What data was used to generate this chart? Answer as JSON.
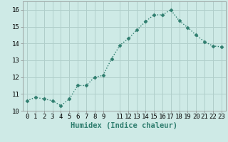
{
  "x": [
    0,
    1,
    2,
    3,
    4,
    5,
    6,
    7,
    8,
    9,
    10,
    11,
    12,
    13,
    14,
    15,
    16,
    17,
    18,
    19,
    20,
    21,
    22,
    23
  ],
  "y": [
    10.6,
    10.8,
    10.7,
    10.6,
    10.3,
    10.7,
    11.5,
    11.5,
    12.0,
    12.1,
    13.1,
    13.9,
    14.3,
    14.8,
    15.3,
    15.7,
    15.7,
    16.0,
    15.35,
    14.95,
    14.5,
    14.1,
    13.85,
    13.8
  ],
  "line_color": "#2e7d6e",
  "marker": "D",
  "marker_size": 2.5,
  "bg_color": "#ceeae6",
  "grid_color": "#b0ceca",
  "xlabel": "Humidex (Indice chaleur)",
  "ylim": [
    10,
    16.5
  ],
  "xlim": [
    -0.5,
    23.5
  ],
  "yticks": [
    10,
    11,
    12,
    13,
    14,
    15,
    16
  ],
  "xticks": [
    0,
    1,
    2,
    3,
    4,
    5,
    6,
    7,
    8,
    9,
    11,
    12,
    13,
    14,
    15,
    16,
    17,
    18,
    19,
    20,
    21,
    22,
    23
  ],
  "xlabel_fontsize": 7.5,
  "tick_fontsize": 6.5,
  "line_width": 1.0,
  "line_style": "dotted"
}
